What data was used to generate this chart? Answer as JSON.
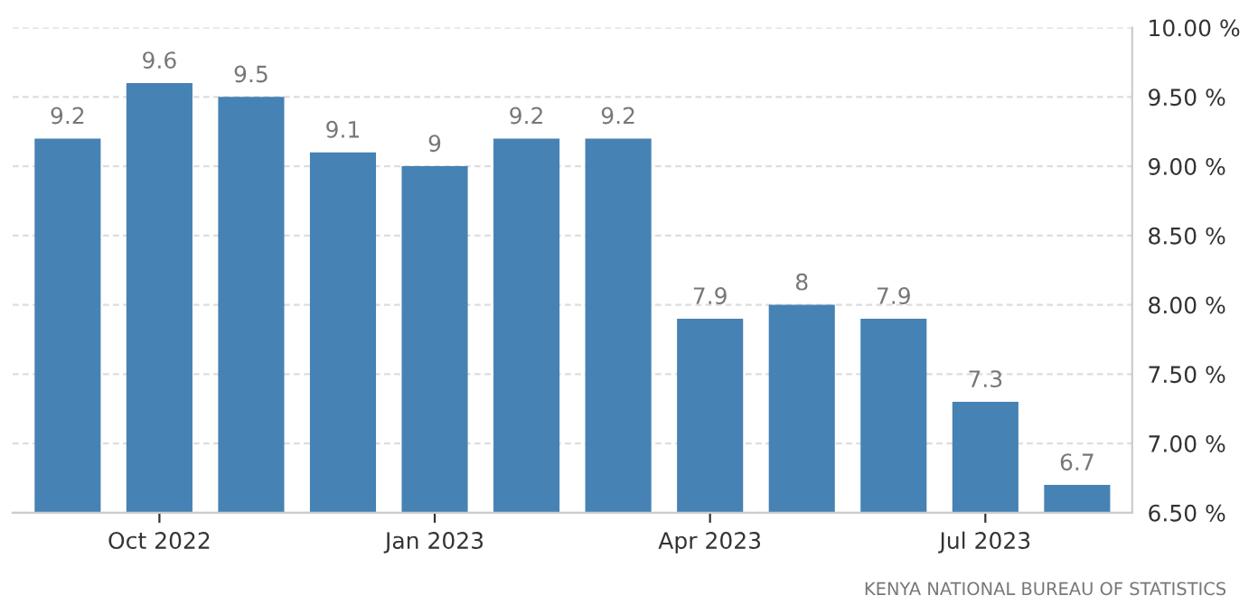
{
  "chart_data": {
    "type": "bar",
    "categories": [
      null,
      "Oct 2022",
      null,
      null,
      "Jan 2023",
      null,
      null,
      "Apr 2023",
      null,
      null,
      "Jul 2023",
      null
    ],
    "values": [
      9.2,
      9.6,
      9.5,
      9.1,
      9,
      9.2,
      9.2,
      7.9,
      8,
      7.9,
      7.3,
      6.7
    ],
    "color": "#4682b4",
    "data_labels": true,
    "ylim": [
      6.5,
      10.0
    ],
    "yticks": [
      {
        "value": 6.5,
        "label": "6.50 %"
      },
      {
        "value": 7.0,
        "label": "7.00 %"
      },
      {
        "value": 7.5,
        "label": "7.50 %"
      },
      {
        "value": 8.0,
        "label": "8.00 %"
      },
      {
        "value": 8.5,
        "label": "8.50 %"
      },
      {
        "value": 9.0,
        "label": "9.00 %"
      },
      {
        "value": 9.5,
        "label": "9.50 %"
      },
      {
        "value": 10.0,
        "label": "10.00 %"
      }
    ],
    "grid": "y",
    "annotations": [
      "KENYA NATIONAL BUREAU OF STATISTICS"
    ]
  }
}
